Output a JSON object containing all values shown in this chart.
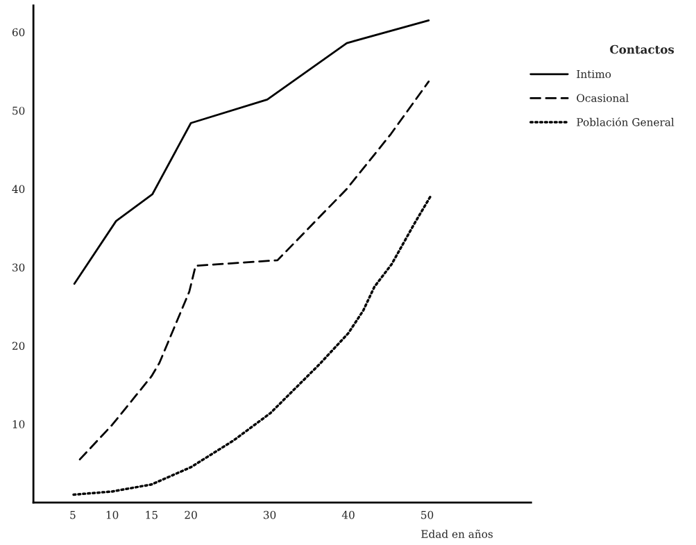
{
  "chart_data": {
    "type": "line",
    "xlabel": "Edad en años",
    "legend_title": "Contactos",
    "legend": "right",
    "grid": false,
    "xlim": [
      0,
      63.2
    ],
    "ylim": [
      0,
      63.4
    ],
    "xticks": [
      5,
      10,
      15,
      20,
      30,
      40,
      50
    ],
    "yticks": [
      10,
      20,
      30,
      40,
      50,
      60
    ],
    "series": [
      {
        "name": "Intimo",
        "color": "#000000",
        "line_style": "solid",
        "x": [
          5.2,
          10.5,
          15.1,
          20,
          29.7,
          39.8,
          50.2
        ],
        "values": [
          27.9,
          35.9,
          39.3,
          48.4,
          51.4,
          58.6,
          61.5
        ]
      },
      {
        "name": "Ocasional",
        "color": "#000000",
        "line_style": "dashed",
        "x": [
          5.9,
          10,
          15,
          16,
          19.8,
          20.6,
          31,
          39.8,
          45.4,
          50.2
        ],
        "values": [
          5.5,
          9.9,
          16.1,
          17.8,
          26.9,
          30.2,
          30.9,
          40,
          47,
          53.7
        ]
      },
      {
        "name": "Población General",
        "color": "#000000",
        "line_style": "dotted",
        "x": [
          5.1,
          10,
          15,
          20,
          25.4,
          30.1,
          36.3,
          40,
          41.9,
          43.3,
          45.5,
          48.4,
          50.4
        ],
        "values": [
          1.0,
          1.4,
          2.3,
          4.5,
          7.9,
          11.4,
          17.6,
          21.6,
          24.5,
          27.5,
          30.4,
          35.6,
          39.0
        ]
      }
    ]
  }
}
